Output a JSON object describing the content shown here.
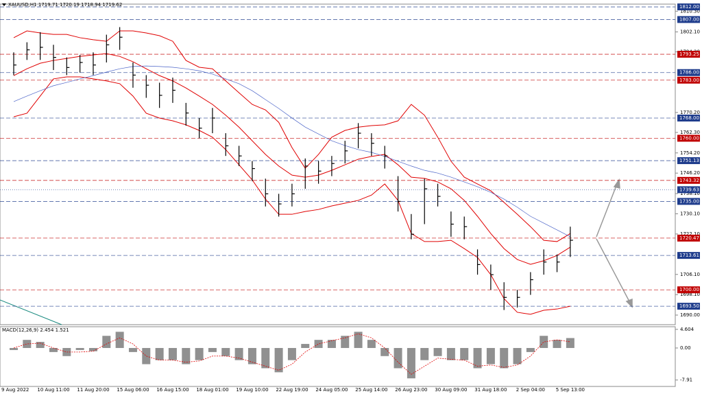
{
  "chart_data": [
    {
      "type": "ohlc",
      "title": "XAUUSD,H1  1719.71 1720.19 1718.94 1719.62",
      "categories": [
        "9 Aug 2022",
        null,
        null,
        "10 Aug 11:00",
        null,
        null,
        "11 Aug 20:00",
        null,
        null,
        "15 Aug 06:00",
        null,
        null,
        "16 Aug 15:00",
        null,
        null,
        "18 Aug 01:00",
        null,
        null,
        "19 Aug 10:00",
        null,
        null,
        "22 Aug 19:00",
        null,
        null,
        "24 Aug 05:00",
        null,
        null,
        "25 Aug 14:00",
        null,
        null,
        "26 Aug 23:00",
        null,
        null,
        "30 Aug 09:00",
        null,
        null,
        "31 Aug 18:00",
        null,
        null,
        "2 Sep 04:00",
        null,
        null,
        "5 Sep 13:00"
      ],
      "high": [
        1794,
        1798,
        1802,
        1797,
        1792,
        1793,
        1794,
        1801,
        1804,
        1790,
        1785,
        1782,
        1784,
        1774,
        1768,
        1772,
        1762,
        1757,
        1751,
        1744,
        1738,
        1742,
        1752,
        1751,
        1753,
        1759,
        1766,
        1762,
        1757,
        1745,
        1730,
        1744,
        1742,
        1731,
        1729,
        1716,
        1710,
        1703,
        1700,
        1707,
        1716,
        1714,
        1725
      ],
      "low": [
        1785,
        1791,
        1791,
        1787,
        1785,
        1786,
        1785,
        1790,
        1795,
        1780,
        1776,
        1772,
        1774,
        1765,
        1760,
        1762,
        1753,
        1749,
        1743,
        1733,
        1729,
        1733,
        1740,
        1742,
        1745,
        1750,
        1756,
        1753,
        1748,
        1731,
        1720,
        1726,
        1733,
        1721,
        1720,
        1706,
        1700,
        1692,
        1693,
        1698,
        1706,
        1707,
        1713
      ],
      "close": [
        1789,
        1795,
        1796,
        1792,
        1788,
        1790,
        1789,
        1797,
        1800,
        1785,
        1781,
        1777,
        1779,
        1770,
        1764,
        1768,
        1757,
        1753,
        1748,
        1738,
        1734,
        1738,
        1749,
        1747,
        1750,
        1755,
        1762,
        1758,
        1753,
        1735,
        1722,
        1740,
        1737,
        1726,
        1725,
        1710,
        1706,
        1697,
        1697,
        1704,
        1711,
        1711,
        1719.62
      ],
      "color": "#000000",
      "overlays": [
        {
          "color": "#e00000",
          "values": [
            1799.8,
            1802.5,
            1801.7,
            1801.1,
            1801.1,
            1799.8,
            1799.0,
            1798.4,
            1802.5,
            1802.5,
            1801.7,
            1800.6,
            1798.4,
            1790.8,
            1788.1,
            1787.5,
            1782.7,
            1778.0,
            1773.4,
            1771.2,
            1766.3,
            1756.3,
            1748.1,
            1753.6,
            1760.4,
            1763.1,
            1764.4,
            1765.0,
            1765.3,
            1766.9,
            1773.4,
            1769.1,
            1760.4,
            1750.9,
            1744.6,
            1741.9,
            1739.2,
            1734.6,
            1729.9,
            1725.0,
            1719.6,
            1719.1,
            1722.3
          ]
        },
        {
          "color": "#e00000",
          "values": [
            1784.8,
            1787.5,
            1789.7,
            1790.8,
            1791.6,
            1792.4,
            1793.0,
            1793.5,
            1792.4,
            1790.3,
            1787.5,
            1784.8,
            1782.7,
            1779.9,
            1776.7,
            1773.4,
            1769.1,
            1764.4,
            1759.0,
            1753.6,
            1749.0,
            1745.4,
            1744.6,
            1745.4,
            1747.3,
            1749.5,
            1751.7,
            1752.8,
            1753.6,
            1749.5,
            1744.6,
            1744.1,
            1742.7,
            1740.0,
            1735.4,
            1729.1,
            1722.3,
            1716.3,
            1712.0,
            1710.1,
            1711.5,
            1713.6,
            1716.9
          ]
        },
        {
          "color": "#e00000",
          "values": [
            1768.5,
            1769.9,
            1776.7,
            1783.5,
            1784.3,
            1784.3,
            1783.5,
            1782.7,
            1781.6,
            1776.7,
            1769.9,
            1768.0,
            1766.9,
            1765.3,
            1763.1,
            1760.4,
            1755.5,
            1749.5,
            1743.5,
            1735.9,
            1729.9,
            1729.9,
            1731.0,
            1731.8,
            1733.2,
            1734.3,
            1735.4,
            1737.5,
            1741.9,
            1735.4,
            1722.3,
            1719.1,
            1719.1,
            1719.6,
            1716.3,
            1712.8,
            1706.0,
            1696.5,
            1691.1,
            1690.3,
            1691.9,
            1692.4,
            1693.5
          ]
        },
        {
          "color": "#4a63c8",
          "values": [
            1774.5,
            1776.7,
            1778.8,
            1780.8,
            1782.1,
            1783.5,
            1784.8,
            1786.2,
            1787.5,
            1788.4,
            1788.6,
            1788.4,
            1788.1,
            1787.5,
            1786.7,
            1785.4,
            1783.5,
            1781.6,
            1778.8,
            1775.3,
            1771.8,
            1768.0,
            1764.4,
            1761.7,
            1759.0,
            1757.1,
            1755.5,
            1754.4,
            1752.8,
            1750.9,
            1749.0,
            1747.3,
            1746.2,
            1744.6,
            1742.7,
            1740.8,
            1738.6,
            1735.9,
            1732.7,
            1729.1,
            1726.4,
            1723.7,
            1721.0
          ]
        }
      ],
      "levels": [
        {
          "value": 1812,
          "label": "1812.00",
          "color": "#1e3c8c"
        },
        {
          "value": 1807,
          "label": "1807.00",
          "color": "#1e3c8c"
        },
        {
          "value": 1793.25,
          "label": "1793.25",
          "color": "#c00000"
        },
        {
          "value": 1786,
          "label": "1786.00",
          "color": "#1e3c8c"
        },
        {
          "value": 1783,
          "label": "1783.00",
          "color": "#c00000"
        },
        {
          "value": 1768,
          "label": "1768.00",
          "color": "#1e3c8c"
        },
        {
          "value": 1760,
          "label": "1760.00",
          "color": "#c00000"
        },
        {
          "value": 1751.13,
          "label": "1751.13",
          "color": "#1e3c8c"
        },
        {
          "value": 1743.32,
          "label": "1743.32",
          "color": "#c00000"
        },
        {
          "value": 1739.63,
          "label": "1739.63",
          "color": "#1e3c8c"
        },
        {
          "value": 1735,
          "label": "1735.00",
          "color": "#1e3c8c"
        },
        {
          "value": 1720.47,
          "label": "1720.47",
          "color": "#c00000"
        },
        {
          "value": 1713.61,
          "label": "1713.61",
          "color": "#1e3c8c"
        },
        {
          "value": 1700,
          "label": "1700.00",
          "color": "#c00000"
        },
        {
          "value": 1693.5,
          "label": "1693.50",
          "color": "#1e3c8c"
        }
      ],
      "ylim": [
        1686.2,
        1813.1
      ],
      "yticks": [
        {
          "value": 1810.3,
          "label": "1810.30"
        },
        {
          "value": 1802.1,
          "label": "1802.10"
        },
        {
          "value": 1794.2,
          "label": "1794.20"
        },
        {
          "value": 1770.2,
          "label": "1770.20"
        },
        {
          "value": 1762.3,
          "label": "1762.30"
        },
        {
          "value": 1754.2,
          "label": "1754.20"
        },
        {
          "value": 1746.2,
          "label": "1746.20"
        },
        {
          "value": 1738.1,
          "label": "1738.10"
        },
        {
          "value": 1730.1,
          "label": "1730.10"
        },
        {
          "value": 1722.1,
          "label": "1722.10"
        },
        {
          "value": 1706.1,
          "label": "1706.10"
        },
        {
          "value": 1698.1,
          "label": "1698.10"
        },
        {
          "value": 1690,
          "label": "1690.00"
        }
      ]
    },
    {
      "type": "macd",
      "title": "MACD(12,26,9) 2.454 1.521",
      "values": [
        -0.5,
        2.0,
        1.5,
        -1.0,
        -2.0,
        -0.5,
        -0.8,
        3.0,
        4.0,
        -1.0,
        -4.0,
        -3.0,
        -3.0,
        -4.0,
        -3.0,
        -1.0,
        -2.0,
        -3.0,
        -4.0,
        -5.0,
        -6.0,
        -3.0,
        1.0,
        2.0,
        2.0,
        3.0,
        4.0,
        2.0,
        -2.0,
        -5.0,
        -7.5,
        -3.0,
        -2.0,
        -3.0,
        -3.0,
        -5.0,
        -4.0,
        -5.0,
        -4.0,
        -1.0,
        3.0,
        2.0,
        2.454
      ],
      "signal": [
        0,
        1,
        1.2,
        0,
        -1,
        -1,
        -0.8,
        1,
        2.5,
        1,
        -2,
        -3,
        -3,
        -3.5,
        -3.2,
        -2,
        -2,
        -2.5,
        -3.5,
        -4.5,
        -5.5,
        -4,
        -1,
        1,
        1.8,
        2.5,
        3.5,
        2.5,
        0,
        -3.5,
        -6.5,
        -4.5,
        -2.5,
        -2.8,
        -3,
        -4.5,
        -4.2,
        -4.8,
        -4.2,
        -2,
        1.5,
        2,
        1.521
      ],
      "color": "#909090",
      "signal_color": "#e00000",
      "ylim": [
        -9.5,
        5.25
      ],
      "yticks": [
        4.604,
        {
          "value": 0,
          "label": "0.00"
        },
        -7.91
      ]
    }
  ]
}
